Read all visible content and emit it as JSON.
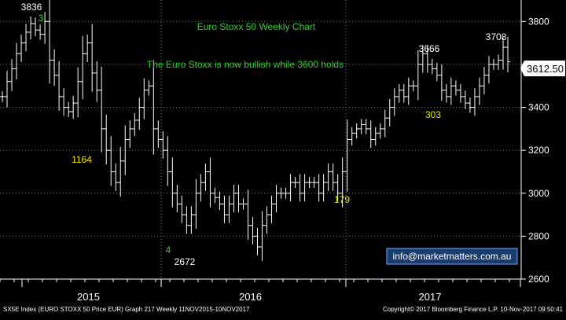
{
  "chart_data": {
    "type": "ohlc",
    "title": "Euro Stoxx 50 Weekly Chart",
    "subtitle": "The Euro Stoxx is now bullish while 3600 holds",
    "ylim": [
      2600,
      3900
    ],
    "y_ticks": [
      2600,
      2800,
      3000,
      3200,
      3400,
      3600,
      3800
    ],
    "x_labels": [
      "2015",
      "2016",
      "2017"
    ],
    "last_price": "3612.50",
    "point_labels": [
      {
        "text": "3836",
        "color": "white"
      },
      {
        "text": "3",
        "color": "green"
      },
      {
        "text": "1164",
        "color": "yellow"
      },
      {
        "text": "4",
        "color": "green"
      },
      {
        "text": "2672",
        "color": "white"
      },
      {
        "text": "179",
        "color": "yellow"
      },
      {
        "text": "3666",
        "color": "white"
      },
      {
        "text": "303",
        "color": "yellow"
      },
      {
        "text": "3708",
        "color": "white"
      }
    ],
    "weekly_closes": [
      3450,
      3520,
      3580,
      3650,
      3700,
      3750,
      3790,
      3760,
      3740,
      3800,
      3620,
      3550,
      3450,
      3400,
      3380,
      3420,
      3520,
      3650,
      3700,
      3560,
      3480,
      3300,
      3200,
      3100,
      3050,
      3150,
      3250,
      3300,
      3340,
      3400,
      3480,
      3500,
      3300,
      3250,
      3200,
      3100,
      3000,
      2950,
      2900,
      2850,
      2900,
      3000,
      3050,
      3100,
      3000,
      2980,
      2950,
      2900,
      2950,
      3000,
      2950,
      2950,
      2850,
      2800,
      2750,
      2850,
      2900,
      2950,
      3000,
      3000,
      3000,
      3050,
      3050,
      3000,
      3050,
      3050,
      3050,
      3000,
      3050,
      3100,
      3050,
      3000,
      3100,
      3250,
      3280,
      3300,
      3320,
      3300,
      3250,
      3280,
      3300,
      3350,
      3400,
      3450,
      3480,
      3450,
      3500,
      3500,
      3600,
      3650,
      3600,
      3580,
      3550,
      3480,
      3450,
      3500,
      3480,
      3450,
      3420,
      3400,
      3450,
      3500,
      3550,
      3600,
      3600,
      3620,
      3680,
      3612
    ]
  },
  "annotation": "info@marketmatters.com.au",
  "footer": {
    "left": "SX5E Index (EURO STOXX 50 Price EUR) Graph 217  Weekly 11NOV2015-10NOV2017",
    "right": "Copyright© 2017 Bloomberg Finance L.P.      10-Nov-2017 09:50:41"
  },
  "colors": {
    "background": "#000000",
    "bars": "#ffffff",
    "title": "#33cc33",
    "yellow_label": "#e8e800",
    "green_label": "#33cc33",
    "badge_bg": "#1a3d6e",
    "badge_border": "#6fa8ff"
  }
}
